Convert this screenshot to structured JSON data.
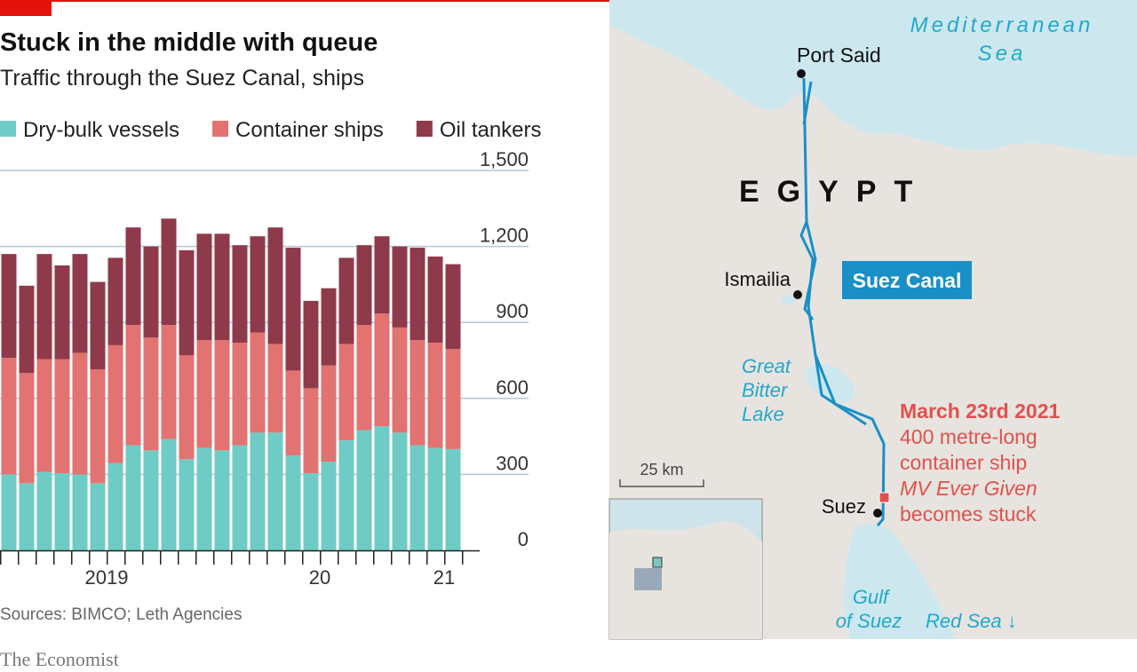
{
  "chart_data": {
    "type": "stacked-bar",
    "title": "Stuck in the middle with queue",
    "subtitle": "Traffic through the Suez Canal, ships",
    "source": "Sources: BIMCO; Leth Agencies",
    "brand": "The Economist",
    "categories": [
      null,
      null,
      null,
      null,
      null,
      null,
      null,
      null,
      null,
      null,
      null,
      null,
      null,
      null,
      null,
      null,
      null,
      null,
      null,
      null,
      null,
      null,
      null,
      null,
      null,
      null
    ],
    "year_labels": [
      {
        "label": "2019",
        "span": 12
      },
      {
        "label": "20",
        "span": 12
      },
      {
        "label": "21",
        "span": 2
      }
    ],
    "series": [
      {
        "name": "Dry-bulk vessels",
        "color": "#6fcbc5",
        "values": [
          300,
          265,
          310,
          305,
          300,
          265,
          345,
          415,
          395,
          440,
          360,
          405,
          395,
          415,
          465,
          465,
          375,
          305,
          350,
          435,
          475,
          490,
          465,
          415,
          405,
          400
        ]
      },
      {
        "name": "Container ships",
        "color": "#e27370",
        "values": [
          460,
          435,
          445,
          450,
          480,
          450,
          465,
          475,
          445,
          450,
          410,
          425,
          435,
          405,
          395,
          350,
          335,
          335,
          380,
          380,
          415,
          445,
          415,
          415,
          415,
          395
        ]
      },
      {
        "name": "Oil tankers",
        "color": "#8f3a4b",
        "values": [
          410,
          345,
          415,
          370,
          390,
          345,
          345,
          385,
          360,
          420,
          415,
          420,
          420,
          385,
          380,
          460,
          485,
          345,
          305,
          340,
          315,
          305,
          320,
          365,
          340,
          335
        ]
      }
    ],
    "ylim": [
      0,
      1500
    ],
    "yticks": [
      0,
      300,
      600,
      900,
      {
        "value": 1200,
        "label": "1,200"
      },
      {
        "value": 1500,
        "label": "1,500"
      }
    ],
    "grid": true
  },
  "map": {
    "sea_top": [
      "Mediterranean",
      "Sea"
    ],
    "country": "EGYPT",
    "cities": [
      "Port Said",
      "Ismailia",
      "Suez"
    ],
    "canal": "Suez Canal",
    "lake": [
      "Great",
      "Bitter",
      "Lake"
    ],
    "gulf": [
      "Gulf",
      "of Suez"
    ],
    "red_sea": "Red Sea ↓",
    "scale": "25 km",
    "annotation": [
      "March 23rd 2021",
      "400 metre-long",
      "container ship",
      "MV Ever Given",
      "becomes stuck"
    ]
  }
}
